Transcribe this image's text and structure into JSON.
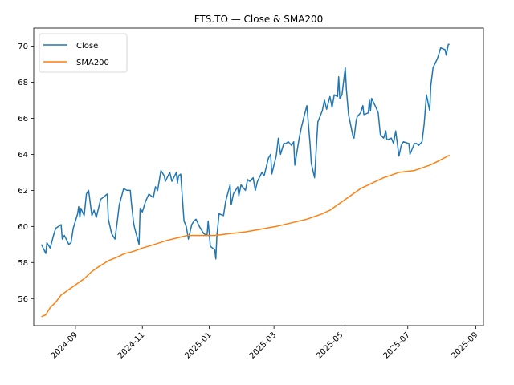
{
  "chart_data": {
    "type": "line",
    "title": "FTS.TO — Close & SMA200",
    "xlabel": "",
    "ylabel": "",
    "x_range": [
      "2024-07-25",
      "2025-09-08"
    ],
    "ylim": [
      54.5,
      71.0
    ],
    "grid": false,
    "legend_position": "top-left",
    "x_ticks": [
      "2024-09",
      "2024-11",
      "2025-01",
      "2025-03",
      "2025-05",
      "2025-07",
      "2025-09"
    ],
    "y_ticks": [
      56,
      58,
      60,
      62,
      64,
      66,
      68,
      70
    ],
    "series": [
      {
        "name": "Close",
        "color": "#1f77b4",
        "points": [
          [
            "2024-08-01",
            59.0
          ],
          [
            "2024-08-05",
            58.5
          ],
          [
            "2024-08-06",
            59.1
          ],
          [
            "2024-08-09",
            58.8
          ],
          [
            "2024-08-12",
            59.5
          ],
          [
            "2024-08-14",
            59.9
          ],
          [
            "2024-08-19",
            60.1
          ],
          [
            "2024-08-20",
            59.3
          ],
          [
            "2024-08-22",
            59.5
          ],
          [
            "2024-08-26",
            59.0
          ],
          [
            "2024-08-28",
            59.1
          ],
          [
            "2024-08-30",
            59.9
          ],
          [
            "2024-09-03",
            60.7
          ],
          [
            "2024-09-04",
            61.1
          ],
          [
            "2024-09-05",
            60.5
          ],
          [
            "2024-09-06",
            61.0
          ],
          [
            "2024-09-09",
            60.6
          ],
          [
            "2024-09-11",
            61.8
          ],
          [
            "2024-09-13",
            62.0
          ],
          [
            "2024-09-16",
            60.6
          ],
          [
            "2024-09-18",
            60.9
          ],
          [
            "2024-09-20",
            60.5
          ],
          [
            "2024-09-24",
            61.5
          ],
          [
            "2024-09-26",
            61.6
          ],
          [
            "2024-09-30",
            61.8
          ],
          [
            "2024-10-01",
            60.4
          ],
          [
            "2024-10-04",
            59.6
          ],
          [
            "2024-10-07",
            59.3
          ],
          [
            "2024-10-09",
            60.2
          ],
          [
            "2024-10-11",
            61.2
          ],
          [
            "2024-10-15",
            62.1
          ],
          [
            "2024-10-18",
            62.0
          ],
          [
            "2024-10-21",
            62.0
          ],
          [
            "2024-10-22",
            61.3
          ],
          [
            "2024-10-24",
            60.2
          ],
          [
            "2024-10-25",
            59.9
          ],
          [
            "2024-10-29",
            59.0
          ],
          [
            "2024-10-30",
            61.0
          ],
          [
            "2024-11-01",
            60.8
          ],
          [
            "2024-11-04",
            61.4
          ],
          [
            "2024-11-07",
            61.8
          ],
          [
            "2024-11-11",
            61.6
          ],
          [
            "2024-11-13",
            62.2
          ],
          [
            "2024-11-15",
            62.0
          ],
          [
            "2024-11-18",
            63.1
          ],
          [
            "2024-11-21",
            62.8
          ],
          [
            "2024-11-22",
            62.5
          ],
          [
            "2024-11-26",
            63.0
          ],
          [
            "2024-11-28",
            62.5
          ],
          [
            "2024-12-02",
            63.0
          ],
          [
            "2024-12-03",
            62.4
          ],
          [
            "2024-12-04",
            62.8
          ],
          [
            "2024-12-06",
            62.9
          ],
          [
            "2024-12-09",
            60.3
          ],
          [
            "2024-12-11",
            60.0
          ],
          [
            "2024-12-13",
            59.3
          ],
          [
            "2024-12-16",
            60.1
          ],
          [
            "2024-12-18",
            60.3
          ],
          [
            "2024-12-20",
            60.4
          ],
          [
            "2024-12-23",
            60.0
          ],
          [
            "2024-12-27",
            59.6
          ],
          [
            "2024-12-30",
            59.5
          ],
          [
            "2024-12-31",
            60.3
          ],
          [
            "2025-01-02",
            58.9
          ],
          [
            "2025-01-06",
            58.7
          ],
          [
            "2025-01-07",
            58.2
          ],
          [
            "2025-01-08",
            59.5
          ],
          [
            "2025-01-10",
            60.7
          ],
          [
            "2025-01-14",
            60.6
          ],
          [
            "2025-01-16",
            61.4
          ],
          [
            "2025-01-20",
            62.3
          ],
          [
            "2025-01-21",
            61.2
          ],
          [
            "2025-01-23",
            61.8
          ],
          [
            "2025-01-27",
            62.2
          ],
          [
            "2025-01-28",
            61.7
          ],
          [
            "2025-01-30",
            62.3
          ],
          [
            "2025-02-03",
            62.0
          ],
          [
            "2025-02-05",
            62.6
          ],
          [
            "2025-02-07",
            62.5
          ],
          [
            "2025-02-10",
            62.7
          ],
          [
            "2025-02-12",
            62.0
          ],
          [
            "2025-02-14",
            62.5
          ],
          [
            "2025-02-18",
            63.0
          ],
          [
            "2025-02-20",
            62.8
          ],
          [
            "2025-02-24",
            63.8
          ],
          [
            "2025-02-26",
            64.0
          ],
          [
            "2025-02-27",
            62.9
          ],
          [
            "2025-03-03",
            63.9
          ],
          [
            "2025-03-05",
            64.9
          ],
          [
            "2025-03-07",
            64.0
          ],
          [
            "2025-03-10",
            64.6
          ],
          [
            "2025-03-12",
            64.6
          ],
          [
            "2025-03-14",
            64.7
          ],
          [
            "2025-03-17",
            64.5
          ],
          [
            "2025-03-19",
            64.7
          ],
          [
            "2025-03-20",
            63.4
          ],
          [
            "2025-03-24",
            64.9
          ],
          [
            "2025-03-26",
            65.5
          ],
          [
            "2025-03-28",
            66.0
          ],
          [
            "2025-03-31",
            66.7
          ],
          [
            "2025-04-03",
            64.5
          ],
          [
            "2025-04-04",
            63.5
          ],
          [
            "2025-04-07",
            62.7
          ],
          [
            "2025-04-09",
            64.8
          ],
          [
            "2025-04-10",
            65.8
          ],
          [
            "2025-04-14",
            66.4
          ],
          [
            "2025-04-16",
            67.0
          ],
          [
            "2025-04-18",
            66.5
          ],
          [
            "2025-04-21",
            67.2
          ],
          [
            "2025-04-23",
            66.6
          ],
          [
            "2025-04-25",
            67.3
          ],
          [
            "2025-04-28",
            67.2
          ],
          [
            "2025-04-29",
            68.3
          ],
          [
            "2025-04-30",
            67.1
          ],
          [
            "2025-05-02",
            67.3
          ],
          [
            "2025-05-05",
            68.8
          ],
          [
            "2025-05-06",
            67.6
          ],
          [
            "2025-05-08",
            66.2
          ],
          [
            "2025-05-12",
            65.0
          ],
          [
            "2025-05-13",
            64.9
          ],
          [
            "2025-05-15",
            65.9
          ],
          [
            "2025-05-16",
            66.1
          ],
          [
            "2025-05-19",
            66.3
          ],
          [
            "2025-05-21",
            66.7
          ],
          [
            "2025-05-22",
            66.2
          ],
          [
            "2025-05-26",
            66.3
          ],
          [
            "2025-05-27",
            67.0
          ],
          [
            "2025-05-28",
            66.4
          ],
          [
            "2025-05-29",
            67.1
          ],
          [
            "2025-06-02",
            66.6
          ],
          [
            "2025-06-04",
            66.3
          ],
          [
            "2025-06-06",
            65.1
          ],
          [
            "2025-06-09",
            64.9
          ],
          [
            "2025-06-11",
            65.3
          ],
          [
            "2025-06-12",
            64.8
          ],
          [
            "2025-06-16",
            64.9
          ],
          [
            "2025-06-18",
            64.6
          ],
          [
            "2025-06-20",
            65.3
          ],
          [
            "2025-06-23",
            63.9
          ],
          [
            "2025-06-25",
            64.5
          ],
          [
            "2025-06-27",
            64.7
          ],
          [
            "2025-07-02",
            64.6
          ],
          [
            "2025-07-03",
            64.0
          ],
          [
            "2025-07-07",
            64.6
          ],
          [
            "2025-07-09",
            64.6
          ],
          [
            "2025-07-11",
            64.5
          ],
          [
            "2025-07-14",
            64.7
          ],
          [
            "2025-07-16",
            65.7
          ],
          [
            "2025-07-18",
            67.3
          ],
          [
            "2025-07-21",
            66.4
          ],
          [
            "2025-07-22",
            67.8
          ],
          [
            "2025-07-24",
            68.8
          ],
          [
            "2025-07-28",
            69.3
          ],
          [
            "2025-07-29",
            69.5
          ],
          [
            "2025-07-31",
            69.9
          ],
          [
            "2025-08-04",
            69.8
          ],
          [
            "2025-08-05",
            69.5
          ],
          [
            "2025-08-07",
            70.1
          ],
          [
            "2025-08-08",
            70.1
          ]
        ]
      },
      {
        "name": "SMA200",
        "color": "#ff7f0e",
        "points": [
          [
            "2024-08-01",
            55.0
          ],
          [
            "2024-08-05",
            55.1
          ],
          [
            "2024-08-09",
            55.5
          ],
          [
            "2024-08-14",
            55.8
          ],
          [
            "2024-08-19",
            56.2
          ],
          [
            "2024-08-26",
            56.5
          ],
          [
            "2024-09-02",
            56.8
          ],
          [
            "2024-09-09",
            57.1
          ],
          [
            "2024-09-16",
            57.5
          ],
          [
            "2024-09-23",
            57.8
          ],
          [
            "2024-10-01",
            58.1
          ],
          [
            "2024-10-09",
            58.3
          ],
          [
            "2024-10-16",
            58.5
          ],
          [
            "2024-10-23",
            58.6
          ],
          [
            "2024-11-01",
            58.8
          ],
          [
            "2024-11-12",
            59.0
          ],
          [
            "2024-11-22",
            59.2
          ],
          [
            "2024-12-02",
            59.35
          ],
          [
            "2024-12-12",
            59.5
          ],
          [
            "2024-12-23",
            59.5
          ],
          [
            "2025-01-06",
            59.5
          ],
          [
            "2025-01-20",
            59.6
          ],
          [
            "2025-02-03",
            59.7
          ],
          [
            "2025-02-17",
            59.85
          ],
          [
            "2025-03-03",
            60.0
          ],
          [
            "2025-03-17",
            60.2
          ],
          [
            "2025-03-31",
            60.4
          ],
          [
            "2025-04-14",
            60.7
          ],
          [
            "2025-04-21",
            60.9
          ],
          [
            "2025-04-28",
            61.2
          ],
          [
            "2025-05-05",
            61.5
          ],
          [
            "2025-05-12",
            61.8
          ],
          [
            "2025-05-19",
            62.1
          ],
          [
            "2025-05-26",
            62.3
          ],
          [
            "2025-06-02",
            62.5
          ],
          [
            "2025-06-09",
            62.7
          ],
          [
            "2025-06-16",
            62.85
          ],
          [
            "2025-06-23",
            63.0
          ],
          [
            "2025-06-30",
            63.05
          ],
          [
            "2025-07-07",
            63.1
          ],
          [
            "2025-07-14",
            63.25
          ],
          [
            "2025-07-21",
            63.4
          ],
          [
            "2025-07-28",
            63.6
          ],
          [
            "2025-08-08",
            63.95
          ]
        ]
      }
    ]
  }
}
